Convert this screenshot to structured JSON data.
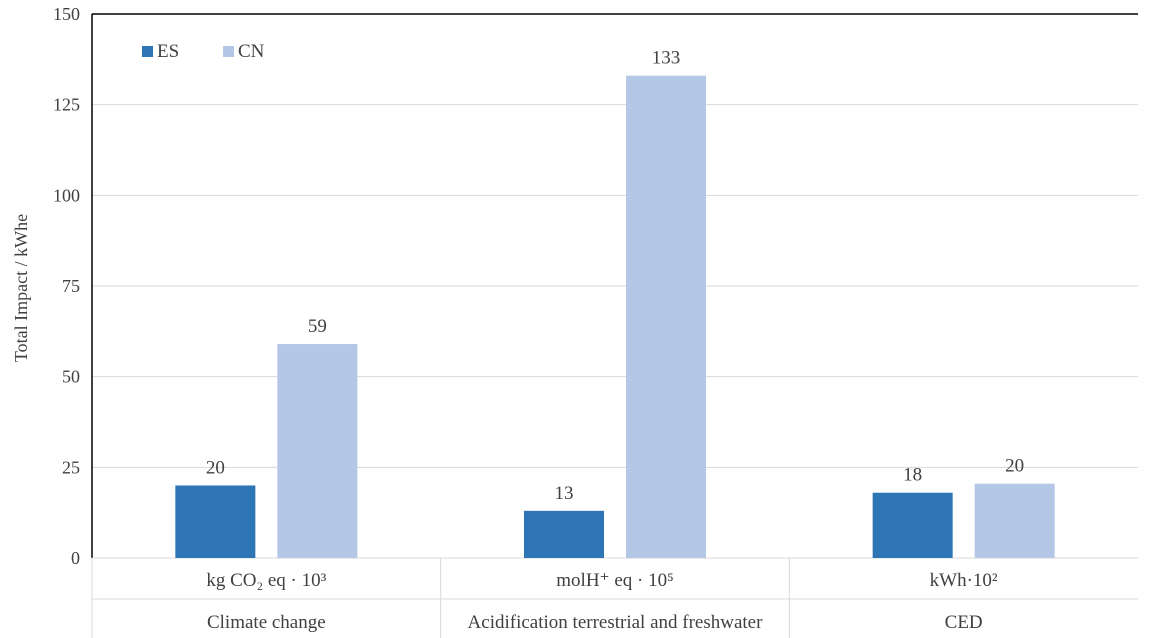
{
  "chart_data": {
    "type": "bar",
    "ylabel": "Total Impact / kWhe",
    "ylim": [
      0,
      150
    ],
    "yticks": [
      0,
      25,
      50,
      75,
      100,
      125,
      150
    ],
    "grid": true,
    "legend_position": "top-left",
    "categories": [
      {
        "unit": "kg CO₂ eq · 10³",
        "name": "Climate change"
      },
      {
        "unit": "molH⁺ eq  · 10⁵",
        "name": "Acidification terrestrial and freshwater"
      },
      {
        "unit": "kWh·10²",
        "name": "CED"
      }
    ],
    "series": [
      {
        "name": "ES",
        "color": "#2e75b6",
        "values": [
          20,
          13,
          18
        ],
        "labels": [
          "20",
          "13",
          "18"
        ]
      },
      {
        "name": "CN",
        "color": "#b4c7e7",
        "values": [
          59,
          133,
          20.5
        ],
        "labels": [
          "59",
          "133",
          "20"
        ]
      }
    ]
  }
}
